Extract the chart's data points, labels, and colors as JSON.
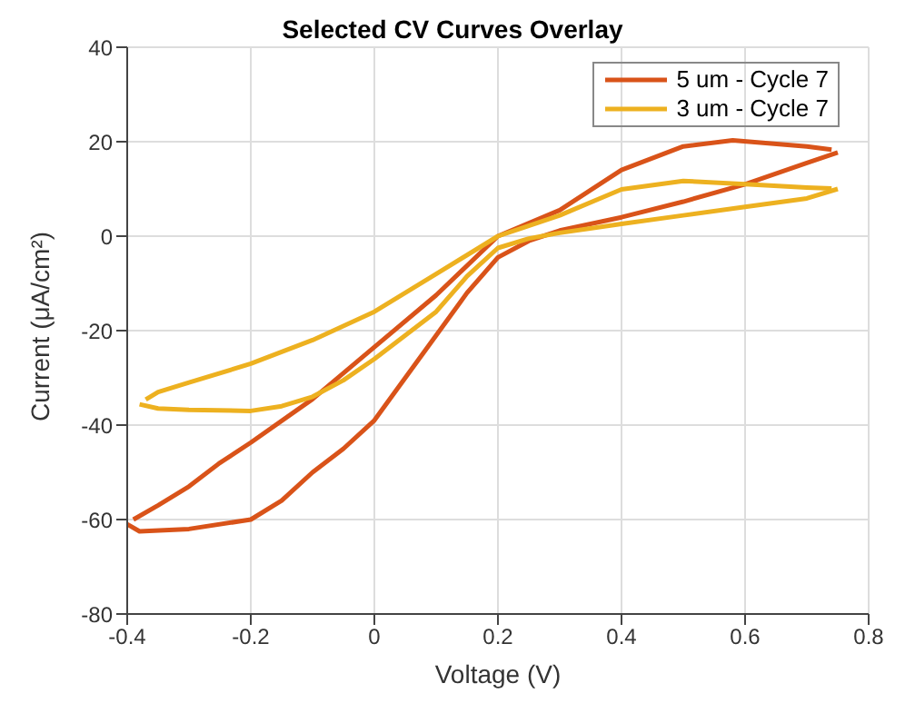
{
  "chart_data": {
    "type": "line",
    "title": "Selected CV Curves Overlay",
    "xlabel": "Voltage (V)",
    "ylabel": "Current  (μA/cm²)",
    "series": [
      {
        "name": "5 um - Cycle 7",
        "color": "#d95319",
        "x": [
          -0.4,
          -0.38,
          -0.3,
          -0.2,
          -0.15,
          -0.1,
          -0.05,
          0,
          0.05,
          0.1,
          0.15,
          0.2,
          0.25,
          0.3,
          0.4,
          0.5,
          0.6,
          0.7,
          0.75
        ],
        "values": [
          -61,
          -62.5,
          -62,
          -60,
          -56,
          -50,
          -45,
          -39,
          -30,
          -21,
          -12,
          -4.5,
          -1,
          1.2,
          4,
          7.3,
          11,
          15.5,
          17.7
        ]
      },
      {
        "color": "#d95319",
        "x": [
          -0.39,
          -0.35,
          -0.3,
          -0.25,
          -0.2,
          -0.1,
          0,
          0.1,
          0.2,
          0.3,
          0.4,
          0.5,
          0.58,
          0.7,
          0.74
        ],
        "values": [
          -60,
          -57,
          -53,
          -48,
          -43.7,
          -34.5,
          -23.5,
          -12.5,
          0,
          5.5,
          14,
          19,
          20.3,
          19,
          18.3
        ]
      },
      {
        "name": "3 um - Cycle 7",
        "color": "#edb120",
        "x": [
          -0.38,
          -0.35,
          -0.3,
          -0.2,
          -0.15,
          -0.1,
          -0.05,
          0,
          0.05,
          0.1,
          0.15,
          0.2,
          0.25,
          0.3,
          0.4,
          0.5,
          0.6,
          0.7,
          0.75
        ],
        "values": [
          -35.6,
          -36.5,
          -36.8,
          -37,
          -36,
          -34,
          -30.5,
          -26,
          -21,
          -16,
          -8.5,
          -2.5,
          -0.5,
          0.7,
          2.6,
          4.4,
          6.2,
          8,
          10
        ]
      },
      {
        "color": "#edb120",
        "x": [
          -0.37,
          -0.35,
          -0.3,
          -0.2,
          -0.1,
          0,
          0.1,
          0.2,
          0.3,
          0.4,
          0.5,
          0.6,
          0.7,
          0.74
        ],
        "values": [
          -34.6,
          -33,
          -31,
          -27,
          -22,
          -16,
          -8,
          0,
          4.4,
          9.9,
          11.7,
          11,
          10.3,
          10.1
        ]
      }
    ],
    "xlim": [
      -0.4,
      0.8
    ],
    "xticks": [
      -0.4,
      -0.2,
      0,
      0.2,
      0.4,
      0.6,
      0.8
    ],
    "ylim": [
      -80,
      40
    ],
    "yticks": [
      -80,
      -60,
      -40,
      -20,
      0,
      20,
      40
    ],
    "grid": true,
    "legend": "top right",
    "marker": "none",
    "line_style": "solid"
  }
}
